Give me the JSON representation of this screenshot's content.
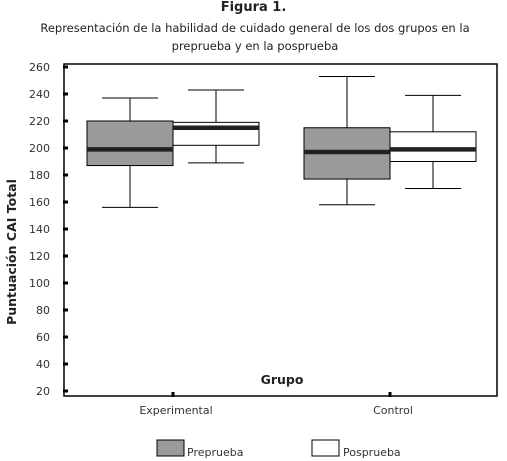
{
  "figure_label": "Figura 1.",
  "caption_line1": "Representación de la habilidad de cuidado general de los dos grupos en la",
  "caption_line2": "preprueba y en la posprueba",
  "chart_data": {
    "type": "boxplot",
    "title": "Figura 1.",
    "subtitle": "Representación de la habilidad de cuidado general de los dos grupos en la preprueba y en la posprueba",
    "xlabel": "Grupo",
    "ylabel": "Puntuación CAI Total",
    "ylim": [
      20,
      260
    ],
    "yticks": [
      20,
      40,
      60,
      80,
      100,
      120,
      140,
      160,
      180,
      200,
      220,
      240,
      260
    ],
    "categories": [
      "Experimental",
      "Control"
    ],
    "legend_position": "bottom",
    "series": [
      {
        "name": "Preprueba",
        "color": "#9a9a9a",
        "boxes": [
          {
            "min": 156,
            "q1": 187,
            "median": 199,
            "q3": 220,
            "max": 237
          },
          {
            "min": 158,
            "q1": 177,
            "median": 197,
            "q3": 215,
            "max": 253
          }
        ]
      },
      {
        "name": "Posprueba",
        "color": "#ffffff",
        "boxes": [
          {
            "min": 189,
            "q1": 202,
            "median": 215,
            "q3": 219,
            "max": 243
          },
          {
            "min": 170,
            "q1": 190,
            "median": 199,
            "q3": 212,
            "max": 239
          }
        ]
      }
    ]
  }
}
